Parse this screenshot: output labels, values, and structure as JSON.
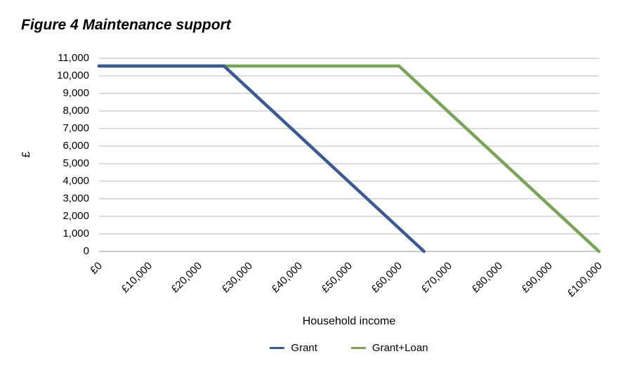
{
  "figure": {
    "background": "#FFFFFF",
    "text_color": "#000000"
  },
  "chart_data": {
    "type": "line",
    "title": "Figure 4 Maintenance support",
    "xlabel": "Household income",
    "ylabel": "£",
    "xlim": [
      0,
      100000
    ],
    "ylim": [
      0,
      11000
    ],
    "x_tick_step": 10000,
    "y_tick_step": 1000,
    "x_ticks": [
      "£0",
      "£10,000",
      "£20,000",
      "£30,000",
      "£40,000",
      "£50,000",
      "£60,000",
      "£70,000",
      "£80,000",
      "£90,000",
      "£100,000"
    ],
    "y_ticks": [
      "11,000",
      "10,000",
      "9,000",
      "8,000",
      "7,000",
      "6,000",
      "5,000",
      "4,000",
      "3,000",
      "2,000",
      "1,000",
      "0"
    ],
    "grid": "horizontal",
    "gridline_color": "#DBDBDB",
    "axis_line_color": "#C9C9C9",
    "legend_position": "bottom",
    "series": [
      {
        "name": "Grant",
        "color": "#3B5992",
        "points": [
          [
            0,
            10560
          ],
          [
            25000,
            10560
          ],
          [
            65000,
            0
          ]
        ]
      },
      {
        "name": "Grant+Loan",
        "color": "#77A456",
        "points": [
          [
            0,
            10560
          ],
          [
            60000,
            10560
          ],
          [
            100000,
            0
          ]
        ]
      }
    ]
  }
}
